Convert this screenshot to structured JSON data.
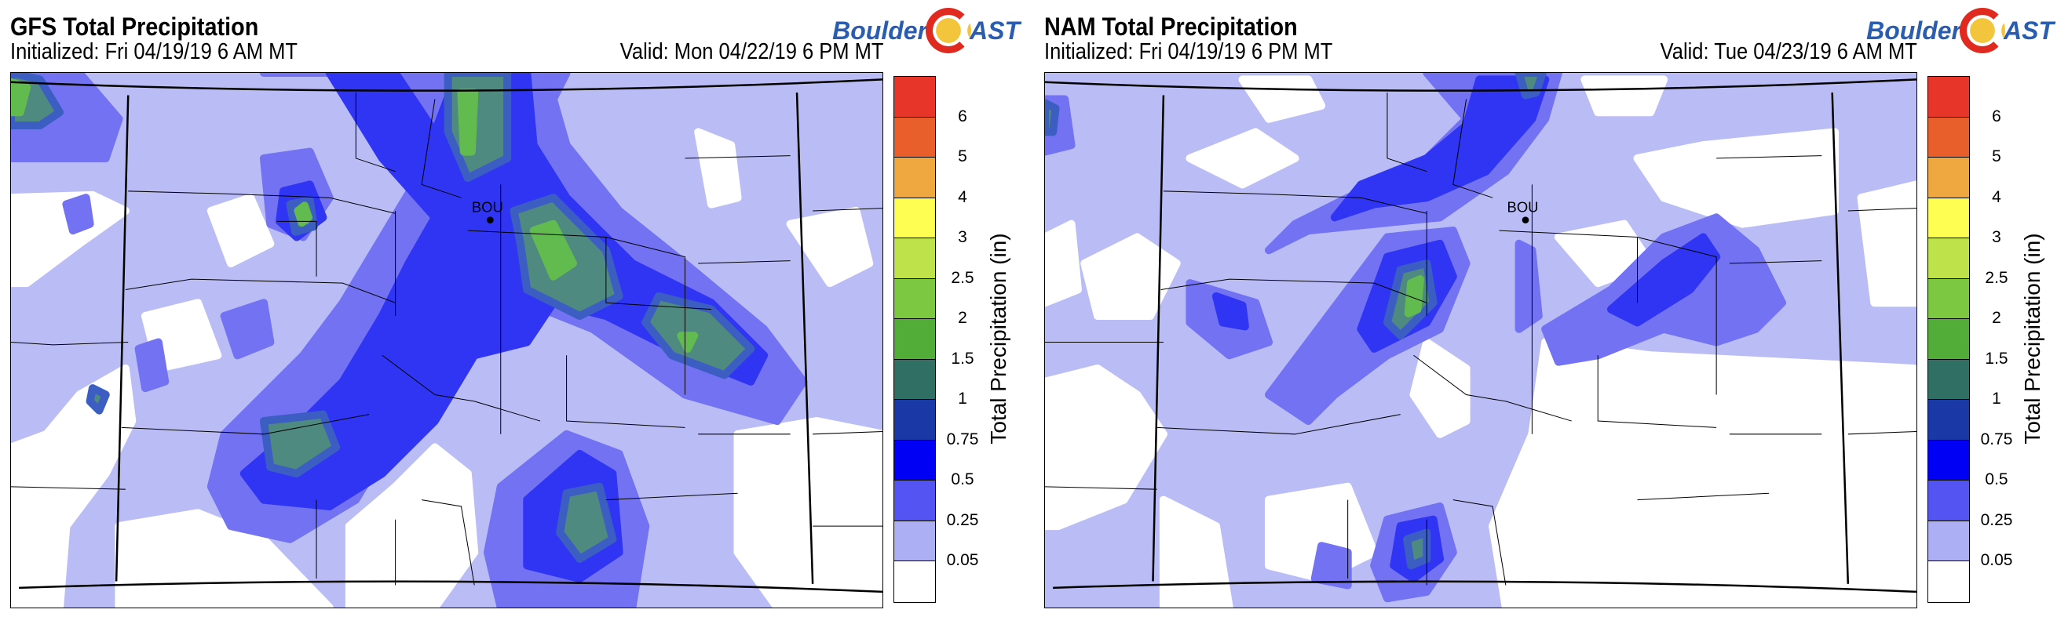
{
  "colorbar": {
    "label": "Total Precipitation (in)",
    "ticks": [
      "6",
      "5",
      "4",
      "3",
      "2.5",
      "2",
      "1.5",
      "1",
      "0.75",
      "0.5",
      "0.25",
      "0.05"
    ],
    "colors": [
      "#e8352a",
      "#e95f2b",
      "#eea83f",
      "#fdfd52",
      "#bde24a",
      "#7dc841",
      "#52ad38",
      "#2f6f64",
      "#1b39a6",
      "#0000f5",
      "#5454f2",
      "#adaff5",
      "#ffffff"
    ]
  },
  "map_colors": {
    "lav": "#babcf6",
    "mblue": "#7272f2",
    "blue": "#2f35f2",
    "dblue": "#3c5ec2",
    "teal": "#4f8a80",
    "green": "#62bb4e"
  },
  "logo": {
    "left": "Boulder",
    "right": "AST"
  },
  "station": {
    "label": "BOU"
  },
  "chart_data": [
    {
      "type": "heatmap",
      "title": "GFS Total Precipitation",
      "subtitle_left": "Initialized: Fri 04/19/19 6 AM MT",
      "subtitle_right": "Valid: Mon 04/22/19 6 PM MT",
      "units": "in",
      "levels": [
        0.05,
        0.25,
        0.5,
        0.75,
        1,
        1.5,
        2,
        2.5,
        3,
        4,
        5,
        6
      ],
      "max_approx": 2.0
    },
    {
      "type": "heatmap",
      "title": "NAM Total Precipitation",
      "subtitle_left": "Initialized: Fri 04/19/19 6 PM MT",
      "subtitle_right": "Valid: Tue 04/23/19 6 AM MT",
      "units": "in",
      "levels": [
        0.05,
        0.25,
        0.5,
        0.75,
        1,
        1.5,
        2,
        2.5,
        3,
        4,
        5,
        6
      ],
      "max_approx": 1.5
    }
  ]
}
